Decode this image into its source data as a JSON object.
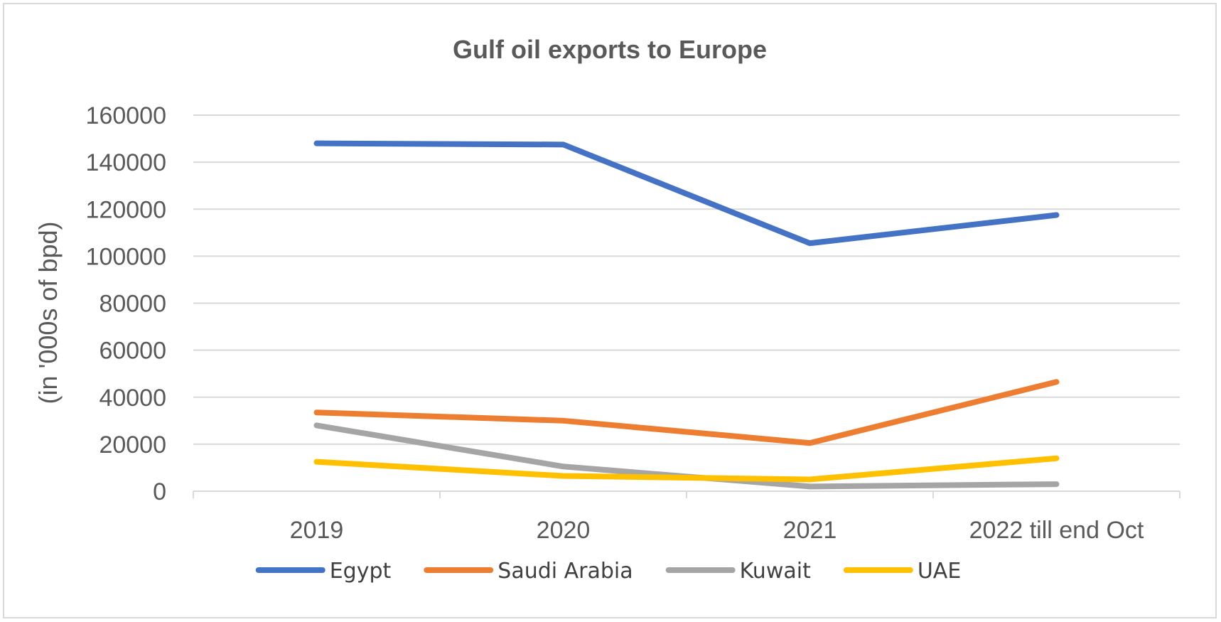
{
  "chart_data": {
    "type": "line",
    "title": "Gulf oil exports to Europe",
    "xlabel": "",
    "ylabel": "(in '000s of bpd)",
    "categories": [
      "2019",
      "2020",
      "2021",
      "2022 till end Oct"
    ],
    "ylim": [
      0,
      160000
    ],
    "yticks": [
      "0",
      "20000",
      "40000",
      "60000",
      "80000",
      "100000",
      "120000",
      "140000",
      "160000"
    ],
    "grid": true,
    "legend": "bottom",
    "series": [
      {
        "name": "Egypt",
        "color": "#4472C4",
        "values": [
          148000,
          147500,
          105500,
          117500
        ]
      },
      {
        "name": "Saudi Arabia",
        "color": "#ED7D31",
        "values": [
          33500,
          30000,
          20500,
          46500
        ]
      },
      {
        "name": "Kuwait",
        "color": "#A5A5A5",
        "values": [
          28000,
          10500,
          2000,
          3000
        ]
      },
      {
        "name": "UAE",
        "color": "#FFC000",
        "values": [
          12500,
          6500,
          5000,
          14000
        ]
      }
    ]
  }
}
